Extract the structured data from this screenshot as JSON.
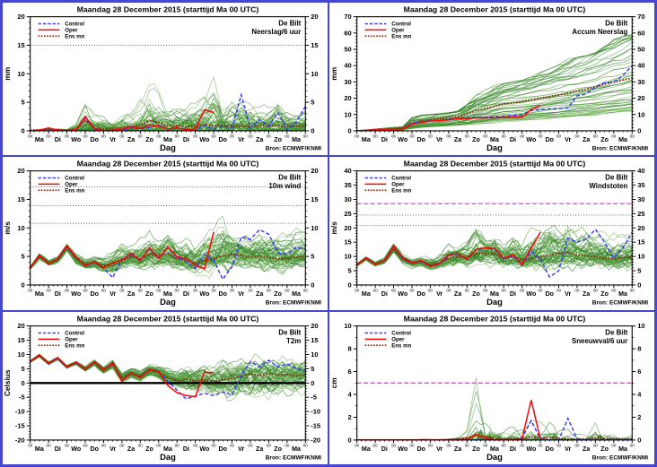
{
  "common": {
    "title": "Maandag 28 December 2015 (starttijd Ma 00 UTC)",
    "station": "De Bilt",
    "xlabel": "Dag",
    "source": "Bron: ECMWF/KNMI",
    "midnight_label": "00",
    "day_labels": [
      "Ma",
      "Di",
      "Wo",
      "Do",
      "Vr",
      "Za",
      "Zo",
      "Ma",
      "Di",
      "Wo",
      "Do",
      "Vr",
      "Za",
      "Zo",
      "Ma"
    ],
    "legend": [
      {
        "id": "control",
        "label": "Control"
      },
      {
        "id": "oper",
        "label": "Oper"
      },
      {
        "id": "ens_mean",
        "label": "Ens mn"
      }
    ],
    "colors": {
      "control": "#3b3bff",
      "oper": "#ff0000",
      "ens_mean": "#8b2500",
      "ensemble": [
        "#3e8f2e",
        "#5aa33c",
        "#2e7d27"
      ],
      "threshold_dotted": "#333333",
      "threshold_magenta": "#ff2bff",
      "zero_line": "#000000",
      "source_text": "#1414ff",
      "frame": "#000000",
      "border": "#4646d0"
    },
    "time_step_hours": 12,
    "x_hours_max": 360
  },
  "chart_data": [
    {
      "type": "line",
      "variable": "Neerslag/6 uur",
      "ylabel": "mm",
      "ylim": [
        0,
        20
      ],
      "yticks": [
        0,
        5,
        10,
        15,
        20
      ],
      "minor_step": 1,
      "style": "spiky",
      "members": 50,
      "hlines": [
        {
          "y": 15,
          "kind": "dotted"
        }
      ],
      "series": {
        "control": [
          0,
          0.1,
          0.4,
          0.1,
          0,
          0.2,
          2.3,
          0.3,
          0,
          0.1,
          0.2,
          0.5,
          0.3,
          0.6,
          1.0,
          0.3,
          0.5,
          0.3,
          0.2,
          1.0,
          0.3,
          0.8,
          0.5,
          6.3,
          0.5,
          2.0,
          0.8,
          3.2,
          0.2,
          1.5,
          4.3
        ],
        "oper": [
          0,
          0.1,
          0.5,
          0.1,
          0,
          0.2,
          2.5,
          0.4,
          0,
          0.1,
          0.3,
          0.7,
          0.4,
          1.0,
          0.8,
          0.3,
          0.5,
          0.2,
          0.3,
          3.7,
          3.2
        ],
        "ens_mean": [
          0.1,
          0.2,
          0.3,
          0.2,
          0.1,
          0.3,
          1.8,
          0.6,
          0.3,
          0.4,
          0.6,
          0.8,
          1.0,
          1.8,
          1.5,
          0.9,
          0.8,
          0.7,
          0.8,
          1.1,
          0.9,
          1.0,
          0.8,
          0.9,
          0.8,
          0.9,
          0.8,
          0.9,
          0.8,
          0.9,
          0.8
        ]
      },
      "envelope": {
        "min": [
          0,
          0,
          0,
          0,
          0,
          0,
          0,
          0,
          0,
          0,
          0,
          0,
          0,
          0,
          0,
          0,
          0,
          0,
          0,
          0,
          0,
          0,
          0,
          0,
          0,
          0,
          0,
          0,
          0,
          0,
          0
        ],
        "max": [
          0.3,
          0.5,
          1.2,
          0.8,
          0.5,
          2,
          6.5,
          4,
          3.5,
          2.5,
          4.5,
          5,
          7,
          10.2,
          9,
          6,
          5.5,
          6,
          6.5,
          8,
          12.2,
          7,
          8.5,
          8,
          6.5,
          6,
          5,
          6.5,
          5,
          4,
          5
        ]
      }
    },
    {
      "type": "line",
      "variable": "Accum Neerslag",
      "ylabel": "mm",
      "ylim": [
        0,
        70
      ],
      "yticks": [
        0,
        10,
        20,
        30,
        40,
        50,
        60,
        70
      ],
      "minor_step": 2,
      "style": "accum",
      "members": 50,
      "hlines": [],
      "series": {
        "control": [
          0,
          0.2,
          0.5,
          0.8,
          1,
          1.2,
          4.5,
          5.5,
          6,
          6.2,
          7,
          7.8,
          8,
          8,
          8.2,
          8.6,
          9,
          9.5,
          10,
          12.5,
          13,
          13.5,
          13.5,
          14,
          21.5,
          22.5,
          27,
          29.5,
          30,
          34,
          40
        ],
        "oper": [
          0,
          0.2,
          0.5,
          0.8,
          1,
          1.2,
          4,
          5,
          6,
          6.3,
          6.8,
          7.3,
          7.6,
          7.8,
          7.9,
          8,
          8.1,
          8.3,
          8.3,
          13,
          15.5
        ],
        "ens_mean": [
          0,
          0.3,
          0.7,
          1,
          1.3,
          1.8,
          4.8,
          6,
          6.8,
          7.4,
          8,
          8.8,
          10.5,
          12.5,
          13.5,
          15,
          16.5,
          17.2,
          18,
          19,
          20,
          21,
          22,
          23.2,
          24.5,
          25.7,
          27,
          28.5,
          30,
          31.2,
          32.5
        ]
      },
      "envelope": {
        "min": [
          0,
          0,
          0.1,
          0.3,
          0.4,
          0.5,
          2,
          3,
          3.5,
          4,
          4.5,
          5,
          5.5,
          6,
          6.5,
          6.5,
          7,
          7,
          7.2,
          7.5,
          7.8,
          8,
          8,
          8.5,
          9,
          9.5,
          10,
          10.5,
          11,
          11.5,
          12
        ],
        "max": [
          0,
          0.5,
          1,
          1.5,
          2,
          2.5,
          8,
          9.5,
          10,
          10.5,
          11,
          12,
          16,
          22,
          26,
          28,
          29,
          30,
          31,
          33,
          36,
          38,
          41,
          44,
          45,
          46,
          48,
          52,
          56,
          58,
          59
        ]
      }
    },
    {
      "type": "line",
      "variable": "10m wind",
      "ylabel": "m/s",
      "ylim": [
        0,
        20
      ],
      "yticks": [
        0,
        5,
        10,
        15,
        20
      ],
      "minor_step": 1,
      "style": "centered",
      "members": 50,
      "hlines": [
        {
          "y": 10.8,
          "kind": "dotted"
        },
        {
          "y": 13.9,
          "kind": "dotted"
        },
        {
          "y": 17.2,
          "kind": "dotted"
        }
      ],
      "series": {
        "control": [
          3,
          5.2,
          3.7,
          4.6,
          6.8,
          4.8,
          3.3,
          4,
          2.9,
          1.3,
          4.6,
          5.3,
          4.4,
          6.4,
          4.6,
          6.6,
          4.9,
          4.1,
          2.9,
          5.4,
          4.3,
          1.0,
          3.2,
          8.4,
          8.0,
          9.7,
          8.9,
          5.6,
          5.4,
          6.6,
          6.2
        ],
        "oper": [
          3,
          5.2,
          3.7,
          4.6,
          6.9,
          4.9,
          3.4,
          4.1,
          3.0,
          3.9,
          4.4,
          5.6,
          4.3,
          6.5,
          4.7,
          6.7,
          5.0,
          4.6,
          3.5,
          2.8,
          9.3
        ],
        "ens_mean": [
          3,
          5,
          3.8,
          4.4,
          6.6,
          4.6,
          3.6,
          3.9,
          3.4,
          3.7,
          4.3,
          4.9,
          4.6,
          5.4,
          5.2,
          5.5,
          4.6,
          4.3,
          3.8,
          4.3,
          4.6,
          5.1,
          5.4,
          5.2,
          4.9,
          5.1,
          4.8,
          4.6,
          4.7,
          4.9,
          5.0
        ]
      },
      "envelope": {
        "min": [
          2.6,
          4,
          3,
          3.4,
          5.5,
          3.2,
          2.4,
          2.6,
          1.5,
          1,
          1.5,
          1.8,
          1.2,
          2,
          1.5,
          1.8,
          1.2,
          1,
          0.8,
          1,
          0.8,
          0.5,
          0.5,
          1,
          1,
          1.2,
          0.8,
          0.5,
          0.8,
          1,
          1.5
        ],
        "max": [
          3.5,
          6,
          4.8,
          5.6,
          7.8,
          6.2,
          5,
          5.5,
          5.5,
          6.5,
          8.8,
          7.5,
          9,
          10.5,
          9.5,
          11.5,
          9,
          10,
          8.5,
          11,
          12,
          14.8,
          11,
          12,
          10.5,
          11,
          10,
          11,
          10.2,
          11,
          10.5
        ]
      }
    },
    {
      "type": "line",
      "variable": "Windstoten",
      "ylabel": "m/s",
      "ylim": [
        0,
        40
      ],
      "yticks": [
        0,
        5,
        10,
        15,
        20,
        25,
        30,
        35,
        40
      ],
      "minor_step": 1,
      "style": "centered",
      "members": 50,
      "hlines": [
        {
          "y": 20.8,
          "kind": "dotted"
        },
        {
          "y": 24.5,
          "kind": "dotted"
        },
        {
          "y": 28.5,
          "kind": "magenta"
        }
      ],
      "series": {
        "control": [
          7,
          9.5,
          7.2,
          8.6,
          13.3,
          9.2,
          7.6,
          8.4,
          6.4,
          7.4,
          10.3,
          10.8,
          8.9,
          12.4,
          12.9,
          12.6,
          9.2,
          10.4,
          7.0,
          11.8,
          9.0,
          2.8,
          5.0,
          16.5,
          15.0,
          16.0,
          19.5,
          15.0,
          9.5,
          13.0,
          18.5
        ],
        "oper": [
          7,
          9.5,
          7.2,
          8.6,
          13.5,
          9.4,
          7.8,
          8.6,
          6.6,
          7.6,
          10.6,
          11,
          9,
          12.6,
          13,
          12.8,
          9.4,
          10.6,
          7.2,
          13,
          18.5
        ],
        "ens_mean": [
          7,
          9.4,
          7.4,
          8.4,
          12.8,
          9,
          7.6,
          8,
          7,
          7.6,
          9.4,
          10,
          9.6,
          11,
          11.2,
          11,
          9.4,
          9.8,
          8.8,
          9.4,
          9.8,
          10.5,
          11,
          11.6,
          10.4,
          10.2,
          10,
          9.4,
          9.2,
          9.6,
          9.8
        ]
      },
      "envelope": {
        "min": [
          6,
          8,
          6,
          7,
          11,
          7,
          5.5,
          6,
          4,
          4.5,
          5,
          5.5,
          4,
          5.5,
          5,
          5.5,
          4,
          3.5,
          3,
          3.5,
          3,
          2.5,
          2.5,
          3,
          3.5,
          4,
          3,
          2.5,
          3,
          3.5,
          4
        ],
        "max": [
          8,
          10.5,
          8.5,
          10,
          15.5,
          12,
          10,
          11,
          10.5,
          13,
          18.5,
          15,
          19,
          25.5,
          22,
          26,
          18,
          22,
          17,
          24,
          26,
          30.5,
          24,
          26,
          22,
          24,
          21,
          23,
          20.5,
          22,
          21
        ]
      }
    },
    {
      "type": "line",
      "variable": "T2m",
      "ylabel": "Celsius",
      "ylim": [
        -20,
        20
      ],
      "yticks": [
        -20,
        -15,
        -10,
        -5,
        0,
        5,
        10,
        15,
        20
      ],
      "minor_step": 1,
      "style": "centered",
      "members": 50,
      "hlines": [
        {
          "y": 0,
          "kind": "zero"
        }
      ],
      "series": {
        "control": [
          7.5,
          9.8,
          6.8,
          8.8,
          5.6,
          7.2,
          4.8,
          7.4,
          4.4,
          7.0,
          0.8,
          3.6,
          2.0,
          4.8,
          4.0,
          0.5,
          -2.5,
          -5.6,
          -4.6,
          -3.6,
          -4.4,
          -3.2,
          -4.2,
          2.5,
          7.6,
          5.6,
          8.0,
          5.6,
          6.8,
          5.0,
          4.6
        ],
        "oper": [
          7.5,
          9.9,
          6.9,
          8.9,
          5.7,
          7.3,
          4.9,
          7.5,
          4.5,
          7.1,
          0.6,
          3.5,
          1.9,
          4.7,
          4.1,
          -0.9,
          -3.4,
          -4.4,
          -4.8,
          3.8,
          3.6
        ],
        "ens_mean": [
          7.5,
          9.6,
          6.9,
          8.6,
          5.7,
          7.1,
          5.0,
          7.2,
          4.6,
          6.6,
          1.8,
          3.4,
          2.4,
          4.4,
          3.6,
          1.8,
          0.8,
          1.4,
          0.6,
          1.0,
          0.4,
          1.2,
          1.6,
          2.4,
          3.2,
          2.6,
          3.4,
          2.8,
          3.0,
          2.6,
          3.0
        ]
      },
      "envelope": {
        "min": [
          6.8,
          8.8,
          5.8,
          7.6,
          4.4,
          5.8,
          3.4,
          5.4,
          2.6,
          4.2,
          -1.5,
          0.5,
          -1,
          1,
          0,
          -3,
          -5,
          -6.5,
          -7.5,
          -6,
          -8.5,
          -7,
          -10.5,
          -9,
          -12.5,
          -10,
          -12,
          -9,
          -8,
          -7.5,
          -7
        ],
        "max": [
          8.2,
          10.4,
          7.8,
          9.6,
          6.6,
          8.2,
          6.2,
          8.6,
          6.2,
          8.8,
          5,
          7,
          5.5,
          8,
          7.5,
          7,
          6.5,
          9.5,
          8.5,
          10.5,
          9.5,
          12.5,
          11,
          12,
          10.5,
          11.5,
          10,
          11.5,
          10.5,
          12.5,
          13
        ]
      }
    },
    {
      "type": "line",
      "variable": "Sneeuwval/6 uur",
      "ylabel": "cm",
      "ylim": [
        0,
        10
      ],
      "yticks": [
        0,
        2,
        4,
        6,
        8,
        10
      ],
      "minor_step": 1,
      "style": "snow",
      "members": 50,
      "hlines": [
        {
          "y": 5,
          "kind": "magenta"
        }
      ],
      "series": {
        "control": [
          0,
          0,
          0,
          0,
          0,
          0,
          0,
          0,
          0,
          0,
          0,
          0,
          0,
          0,
          0,
          0,
          0,
          0,
          0.2,
          1.7,
          0.1,
          0,
          0,
          1.9,
          0.1,
          0,
          0,
          0,
          0,
          0,
          0
        ],
        "oper": [
          0,
          0,
          0,
          0,
          0,
          0,
          0,
          0,
          0,
          0,
          0,
          0,
          0.1,
          0.5,
          0.2,
          0,
          0,
          0,
          0.1,
          3.5,
          0.1
        ],
        "ens_mean": [
          0,
          0,
          0,
          0,
          0,
          0,
          0,
          0,
          0,
          0,
          0.05,
          0.1,
          0.2,
          0.35,
          0.3,
          0.15,
          0.1,
          0.1,
          0.15,
          0.3,
          0.2,
          0.25,
          0.15,
          0.1,
          0.1,
          0.1,
          0.2,
          0.15,
          0.1,
          0.1,
          0.1
        ]
      },
      "envelope": {
        "min": [
          0,
          0,
          0,
          0,
          0,
          0,
          0,
          0,
          0,
          0,
          0,
          0,
          0,
          0,
          0,
          0,
          0,
          0,
          0,
          0,
          0,
          0,
          0,
          0,
          0,
          0,
          0,
          0,
          0,
          0,
          0
        ],
        "max": [
          0,
          0,
          0,
          0,
          0,
          0,
          0.1,
          0.2,
          0.1,
          0.1,
          0.3,
          0.8,
          1.8,
          8.0,
          5.8,
          3.2,
          1.8,
          2.0,
          1.5,
          2.2,
          1.8,
          4.8,
          2.0,
          1.5,
          1.0,
          0.8,
          4.9,
          1.2,
          1.5,
          0.8,
          1.3
        ]
      }
    }
  ]
}
